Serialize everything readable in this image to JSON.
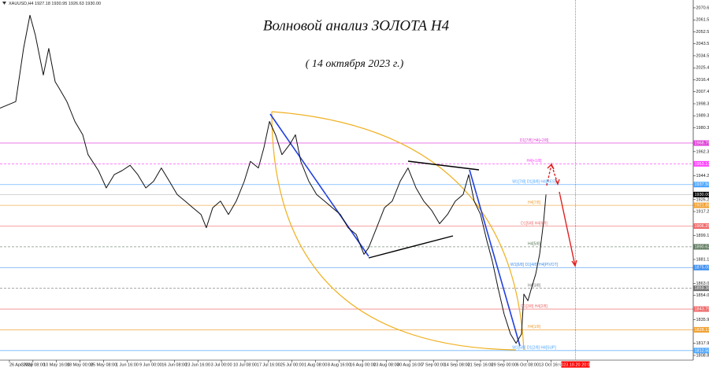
{
  "chart_data": {
    "type": "line",
    "header": "XAUUSD,H4  1927.18 1930.95 1926.63 1930.00",
    "title": "Волновой анализ ЗОЛОТА H4",
    "subtitle": "( 14 октября 2023 г.)",
    "xlim": [
      -0.4,
      29.03
    ],
    "ylim": [
      1804.1,
      2076.5
    ],
    "xticks": [
      {
        "value": 0,
        "label": "26 Apr 2023"
      },
      {
        "value": 1,
        "label": "3 May 08:00"
      },
      {
        "value": 2,
        "label": "10 May 16:00"
      },
      {
        "value": 3,
        "label": "18 May 00:00"
      },
      {
        "value": 4,
        "label": "25 May 08:00"
      },
      {
        "value": 5,
        "label": "1 Jun 16:00"
      },
      {
        "value": 6,
        "label": "9 Jun 00:00"
      },
      {
        "value": 7,
        "label": "16 Jun 08:00"
      },
      {
        "value": 8,
        "label": "23 Jun 16:00"
      },
      {
        "value": 9,
        "label": "3 Jul 00:00"
      },
      {
        "value": 10,
        "label": "10 Jul 08:00"
      },
      {
        "value": 11,
        "label": "17 Jul 16:00"
      },
      {
        "value": 12,
        "label": "25 Jul 00:00"
      },
      {
        "value": 13,
        "label": "1 Aug 08:00"
      },
      {
        "value": 14,
        "label": "8 Aug 16:00"
      },
      {
        "value": 15,
        "label": "16 Aug 00:00"
      },
      {
        "value": 16,
        "label": "23 Aug 08:00"
      },
      {
        "value": 17,
        "label": "30 Aug 16:00"
      },
      {
        "value": 18,
        "label": "7 Sep 00:00"
      },
      {
        "value": 19,
        "label": "14 Sep 08:00"
      },
      {
        "value": 20,
        "label": "21 Sep 16:00"
      },
      {
        "value": 21,
        "label": "29 Sep 00:00"
      },
      {
        "value": 22,
        "label": "6 Oct 08:00"
      },
      {
        "value": 23,
        "label": "13 Oct 16:00"
      }
    ],
    "cursor": {
      "x": 24.03,
      "label": "2023.10.20 20:00",
      "color": "#ff0000"
    },
    "yticks": [
      {
        "value": 2070.6,
        "label": "2070.60"
      },
      2061.56,
      2052.55,
      {
        "value": 2043.5,
        "label": "2043.50"
      },
      {
        "value": 2034.5,
        "label": "2034.50"
      },
      2025.45,
      {
        "value": 2016.4,
        "label": "2016.40"
      },
      {
        "value": 2007.4,
        "label": "2007.40"
      },
      1998.35,
      1989.35,
      {
        "value": 1980.3,
        "label": "1980.30"
      },
      {
        "value": 1962.3,
        "label": "1962.30"
      },
      {
        "value": 1944.2,
        "label": "1944.20"
      },
      {
        "value": 1926.2,
        "label": "1926.20"
      },
      {
        "value": 1917.2,
        "label": "1917.20"
      },
      {
        "value": 1899.1,
        "label": "1899.10"
      },
      {
        "value": 1881.1,
        "label": "1881.10"
      },
      {
        "value": 1863,
        "label": "1863.00"
      },
      {
        "value": 1854,
        "label": "1854.00"
      },
      {
        "value": 1835.9,
        "label": "1835.90"
      },
      {
        "value": 1817.9,
        "label": "1817.90"
      },
      1808.85
    ],
    "current_price": {
      "value": 1930,
      "label": "1930.00"
    },
    "levels": [
      {
        "value": 1968.75,
        "value_label": "1968.75",
        "label": "D1[7/8] H4[+2/8]",
        "color": "#e040d8",
        "dashed": false
      },
      {
        "value": 1953.13,
        "value_label": "1953.13",
        "label": "H4[+1/8]",
        "color": "#ff40ff",
        "dashed": true
      },
      {
        "value": 1937.5,
        "value_label": "1937.50",
        "label": "W1[7/8] D1[8/8] H4[RES]",
        "color": "#4da6ff",
        "dashed": false
      },
      {
        "value": 1921.88,
        "value_label": "1921.88",
        "label": "H4[7/8]",
        "color": "#f0a030",
        "dashed": false
      },
      {
        "value": 1906.25,
        "value_label": "1906.25",
        "label": "D1[5/8] H4[6/8]",
        "color": "#f06a6a",
        "dashed": false
      },
      {
        "value": 1890.62,
        "value_label": "1890.62",
        "label": "H4[5/8]",
        "color": "#5e7a5e",
        "dashed": true
      },
      {
        "value": 1875,
        "value_label": "1875.00",
        "label": "W1[6/8] D1[4/8] H4[PIVOT]",
        "color": "#3d8ef0",
        "dashed": false
      },
      {
        "value": 1859.38,
        "value_label": "1859.38",
        "label": "H4[3/8]",
        "color": "#707070",
        "dashed": true
      },
      {
        "value": 1843.75,
        "value_label": "1843.75",
        "label": "D1[3/8] H4[2/8]",
        "color": "#f06a6a",
        "dashed": false
      },
      {
        "value": 1828.13,
        "value_label": "1828.13",
        "label": "H4[1/8]",
        "color": "#f0a030",
        "dashed": false
      },
      {
        "value": 1812.5,
        "value_label": "1812.50",
        "label": "W1[5/8] D1[2/8] H4[SUP]",
        "color": "#4da6ff",
        "dashed": false
      }
    ],
    "series": [
      {
        "color": "#111111",
        "x": [
          -0.4,
          0.27,
          0.6,
          0.87,
          1.1,
          1.44,
          1.67,
          1.94,
          2.11,
          2.44,
          2.78,
          3.11,
          3.34,
          3.78,
          4.11,
          4.45,
          4.78,
          5.12,
          5.45,
          5.79,
          6.12,
          6.45,
          6.79,
          7.12,
          7.46,
          7.79,
          8.13,
          8.36,
          8.63,
          8.96,
          9.3,
          9.63,
          9.97,
          10.23,
          10.57,
          10.8,
          11.04,
          11.3,
          11.57,
          11.91,
          12.14,
          12.37,
          12.71,
          13.04,
          13.38,
          13.71,
          14.05,
          14.38,
          14.72,
          15.05,
          15.25,
          15.59,
          15.92,
          16.25,
          16.59,
          16.92,
          17.26,
          17.59,
          17.93,
          18.26,
          18.6,
          18.93,
          19.26,
          19.5,
          19.73,
          20.0,
          20.27,
          20.5,
          20.74,
          21.0,
          21.27,
          21.51,
          21.74,
          21.84,
          22.01,
          22.17,
          22.34,
          22.51,
          22.68,
          22.78
        ],
        "values": [
          1995,
          2000,
          2040,
          2065,
          2050,
          2020,
          2040,
          2015,
          2010,
          2000,
          1985,
          1975,
          1960,
          1948,
          1935,
          1945,
          1948,
          1952,
          1945,
          1935,
          1940,
          1950,
          1940,
          1930,
          1925,
          1920,
          1915,
          1905,
          1920,
          1925,
          1915,
          1925,
          1940,
          1955,
          1950,
          1965,
          1985,
          1975,
          1960,
          1968,
          1975,
          1955,
          1940,
          1930,
          1925,
          1920,
          1915,
          1905,
          1900,
          1885,
          1890,
          1905,
          1920,
          1925,
          1940,
          1950,
          1935,
          1925,
          1918,
          1908,
          1915,
          1925,
          1930,
          1945,
          1925,
          1915,
          1895,
          1880,
          1860,
          1840,
          1825,
          1818,
          1825,
          1855,
          1850,
          1860,
          1870,
          1885,
          1910,
          1930
        ]
      }
    ]
  }
}
